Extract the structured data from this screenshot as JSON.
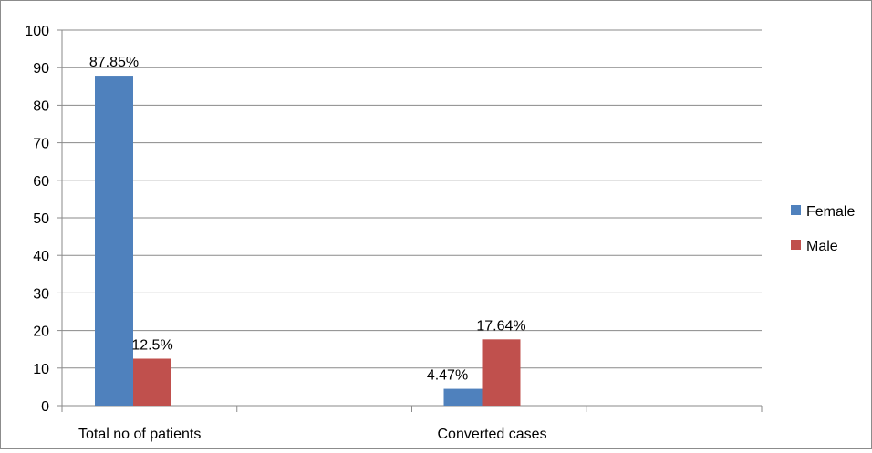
{
  "chart_data": {
    "type": "bar",
    "categories": [
      "Total no of patients",
      "Converted cases"
    ],
    "series": [
      {
        "name": "Female",
        "color": "#4f81bd",
        "values": [
          87.85,
          4.47
        ],
        "labels": [
          "87.85%",
          "4.47%"
        ]
      },
      {
        "name": "Male",
        "color": "#c0504d",
        "values": [
          12.5,
          17.64
        ],
        "labels": [
          "12.5%",
          "17.64%"
        ]
      }
    ],
    "ylim": [
      0,
      100
    ],
    "yticks": [
      "0",
      "10",
      "20",
      "30",
      "40",
      "50",
      "60",
      "70",
      "80",
      "90",
      "100"
    ],
    "grid": true,
    "legend": "right"
  }
}
